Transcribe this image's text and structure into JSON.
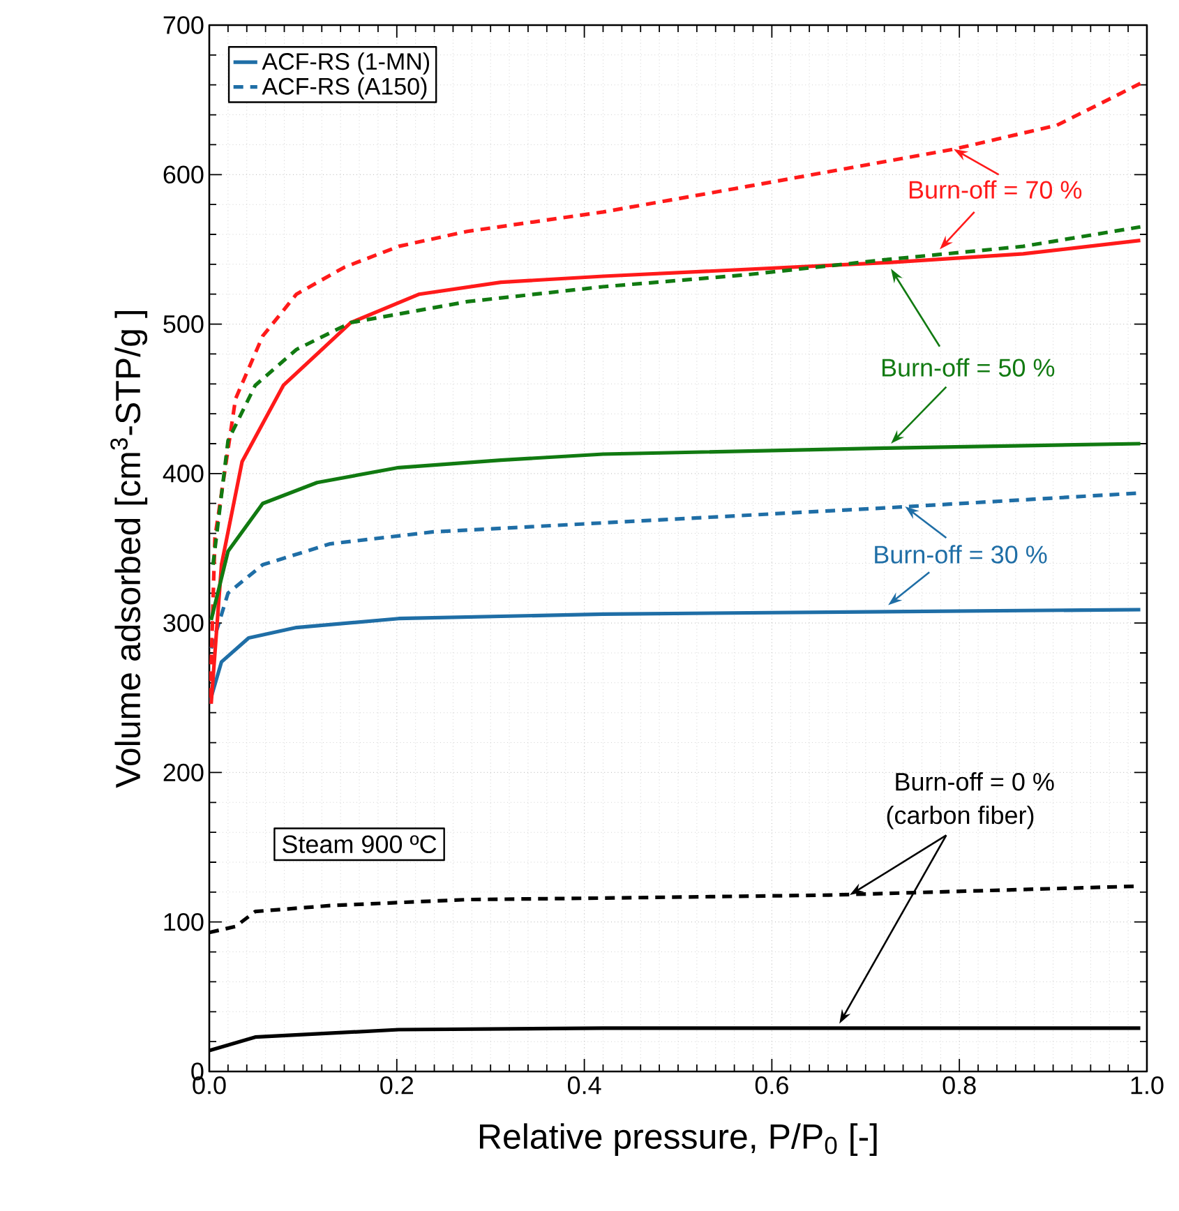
{
  "chart_data": {
    "type": "line",
    "xlabel": "Relative pressure, P/P$_{0}$ [-]",
    "ylabel": "Volume adsorbed [cm$^{3}$-STP/g ]",
    "xlim": [
      0,
      1
    ],
    "ylim": [
      0,
      700
    ],
    "xticks": [
      {
        "value": 0,
        "label": "0.0"
      },
      0.2,
      0.4,
      0.6,
      0.8,
      {
        "value": 1,
        "label": "1.0"
      }
    ],
    "yticks": [
      0,
      100,
      200,
      300,
      400,
      500,
      600,
      700
    ],
    "grid": true,
    "legend": "top left",
    "marker": "none",
    "series": [
      {
        "name": "ACF-RS (1-MN)",
        "color": "#1f6ea6",
        "line_style": "solid",
        "x": [
          0.0,
          0.013,
          0.042,
          0.093,
          0.202,
          0.42,
          0.993
        ],
        "values": [
          246,
          274,
          290,
          297,
          303,
          306,
          309
        ]
      },
      {
        "name": "ACF-RS (A150)",
        "color": "#1f6ea6",
        "line_style": "dashed",
        "x": [
          0.002,
          0.02,
          0.057,
          0.129,
          0.239,
          0.42,
          0.72,
          0.993
        ],
        "values": [
          283,
          320,
          339,
          353,
          361,
          367,
          377,
          387
        ]
      },
      {
        "color": "#ff1a1a",
        "line_style": "solid",
        "x": [
          0.002,
          0.013,
          0.035,
          0.079,
          0.151,
          0.224,
          0.311,
          0.42,
          0.72,
          0.868,
          0.993
        ],
        "values": [
          246,
          339,
          408,
          459,
          501,
          520,
          528,
          532,
          541,
          547,
          556
        ]
      },
      {
        "color": "#ff1a1a",
        "line_style": "dashed",
        "x": [
          0.001,
          0.006,
          0.028,
          0.057,
          0.093,
          0.144,
          0.202,
          0.275,
          0.42,
          0.573,
          0.794,
          0.904,
          0.971,
          0.993
        ],
        "values": [
          250,
          357,
          450,
          492,
          520,
          538,
          552,
          562,
          575,
          592,
          617,
          633,
          654,
          661
        ]
      },
      {
        "color": "#117a11",
        "line_style": "solid",
        "x": [
          0.002,
          0.02,
          0.057,
          0.115,
          0.202,
          0.311,
          0.42,
          0.72,
          0.993
        ],
        "values": [
          302,
          348,
          380,
          394,
          404,
          409,
          413,
          417,
          420
        ]
      },
      {
        "color": "#117a11",
        "line_style": "dashed",
        "x": [
          0.004,
          0.02,
          0.049,
          0.093,
          0.151,
          0.275,
          0.42,
          0.573,
          0.72,
          0.868,
          0.993
        ],
        "values": [
          339,
          422,
          459,
          483,
          501,
          515,
          525,
          533,
          543,
          552,
          565
        ]
      },
      {
        "color": "#000000",
        "line_style": "solid",
        "x": [
          0.0,
          0.049,
          0.202,
          0.42,
          0.993
        ],
        "values": [
          14,
          23,
          28,
          29,
          29
        ]
      },
      {
        "color": "#000000",
        "line_style": "dashed",
        "x": [
          0.0,
          0.028,
          0.049,
          0.129,
          0.275,
          0.42,
          0.661,
          0.993
        ],
        "values": [
          93,
          97,
          107,
          111,
          115,
          116,
          118,
          124
        ]
      }
    ],
    "annotations": [
      {
        "text": "Burn-off = 70 %",
        "x": 0.794,
        "y": 617
      },
      {
        "text": "Burn-off = 50 %",
        "x": 0.727,
        "y": 537
      },
      {
        "text": "Burn-off = 30 %",
        "x": 0.742,
        "y": 378
      },
      "Burn-off = 0 %",
      {
        "text": "(carbon fiber)",
        "x": 0.683,
        "y": 118
      },
      "Steam 900 ºC"
    ]
  }
}
